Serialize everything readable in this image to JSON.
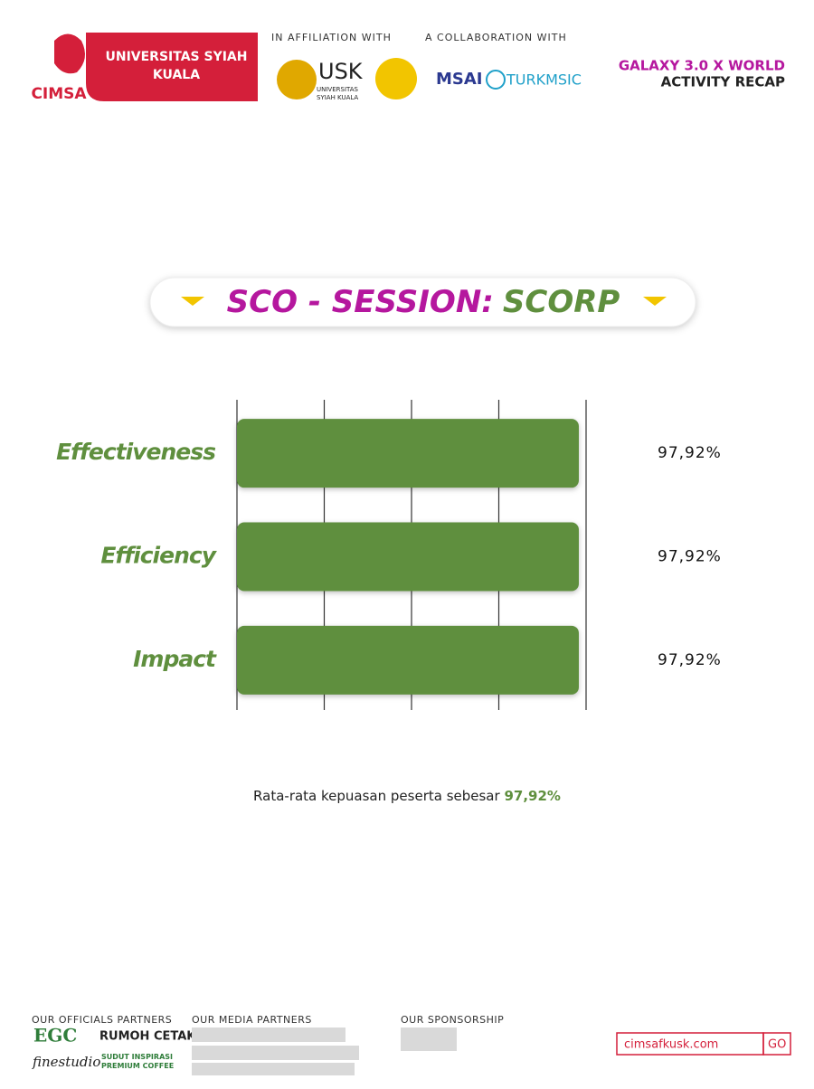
{
  "header": {
    "brand": "CIMSA",
    "university": "UNIVERSITAS SYIAH KUALA",
    "affiliation_label": "IN AFFILIATION WITH",
    "usk_logo": "USK",
    "usk_logo_sub": "UNIVERSITAS SYIAH KUALA",
    "collaboration_label": "A COLLABORATION WITH",
    "msai": "MSAI",
    "turkmsic": "TURKMSIC",
    "event_title": "GALAXY 3.0 X WORLD",
    "event_subtitle": "ACTIVITY RECAP"
  },
  "chart_data": {
    "type": "barh",
    "title_part1": "SCO - SESSION:",
    "title_part2": "SCORP",
    "categories": [
      "Effectiveness",
      "Efficiency",
      "Impact"
    ],
    "values": [
      97.92,
      97.92,
      97.92
    ],
    "value_labels": [
      "97,92%",
      "97,92%",
      "97,92%"
    ],
    "color": "#5f8f3e",
    "xlim": [
      0,
      100
    ],
    "xticks": [
      0,
      25,
      50,
      75,
      100
    ],
    "grid": true
  },
  "summary": {
    "text": "Rata-rata kepuasan peserta sebesar",
    "value": "97,92%"
  },
  "footer": {
    "officials_label": "OUR OFFICIALS PARTNERS",
    "media_label": "OUR MEDIA PARTNERS",
    "sponsorship_label": "OUR SPONSORSHIP",
    "egc": "EGC",
    "rumoh": "RUMOH CETAK",
    "finestudio": "finestudio",
    "sudut": "SUDUT INSPIRASI PREMIUM COFFEE",
    "website": "cimsafkusk.com",
    "go": "GO"
  }
}
